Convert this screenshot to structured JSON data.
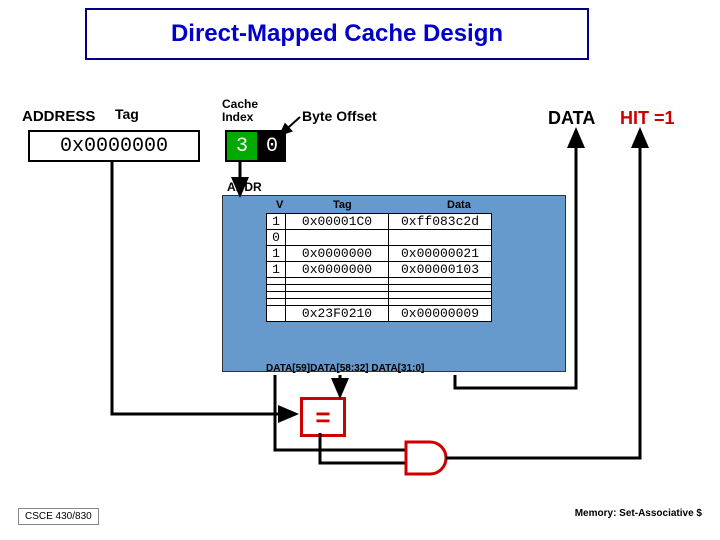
{
  "title": "Direct-Mapped Cache Design",
  "labels": {
    "address": "ADDRESS",
    "tag": "Tag",
    "cache_index": "Cache\nIndex",
    "byte_offset": "Byte Offset",
    "data": "DATA",
    "hit": "HIT =1",
    "addr_small": "ADDR",
    "v_hdr": "V",
    "tag_hdr": "Tag",
    "data_hdr": "Data"
  },
  "addr": {
    "tag_value": "0x0000000",
    "index_value": "3",
    "offset_value": "0"
  },
  "cache_rows": [
    {
      "v": "1",
      "tag": "0x00001C0",
      "data": "0xff083c2d"
    },
    {
      "v": "0",
      "tag": "",
      "data": ""
    },
    {
      "v": "1",
      "tag": "0x0000000",
      "data": "0x00000021"
    },
    {
      "v": "1",
      "tag": "0x0000000",
      "data": "0x00000103"
    },
    {
      "v": "",
      "tag": "",
      "data": "",
      "compact": true
    },
    {
      "v": "",
      "tag": "",
      "data": "",
      "compact": true
    },
    {
      "v": "",
      "tag": "",
      "data": "",
      "compact": true
    },
    {
      "v": "",
      "tag": "",
      "data": "",
      "compact": true
    },
    {
      "v": "",
      "tag": "0x23F0210",
      "data": "0x00000009"
    }
  ],
  "slice_labels": "DATA[59]DATA[58:32]    DATA[31:0]",
  "eq": "=",
  "footer": {
    "left": "CSCE 430/830",
    "right": "Memory: Set-Associative $"
  },
  "colors": {
    "title_border": "#000080",
    "title_text": "#0000cc",
    "idx_bg": "#00aa00",
    "off_bg": "#000000",
    "cache_bg": "#6699cc",
    "eq_color": "#cc0000",
    "hit_color": "#cc0000",
    "wire": "#000000"
  }
}
